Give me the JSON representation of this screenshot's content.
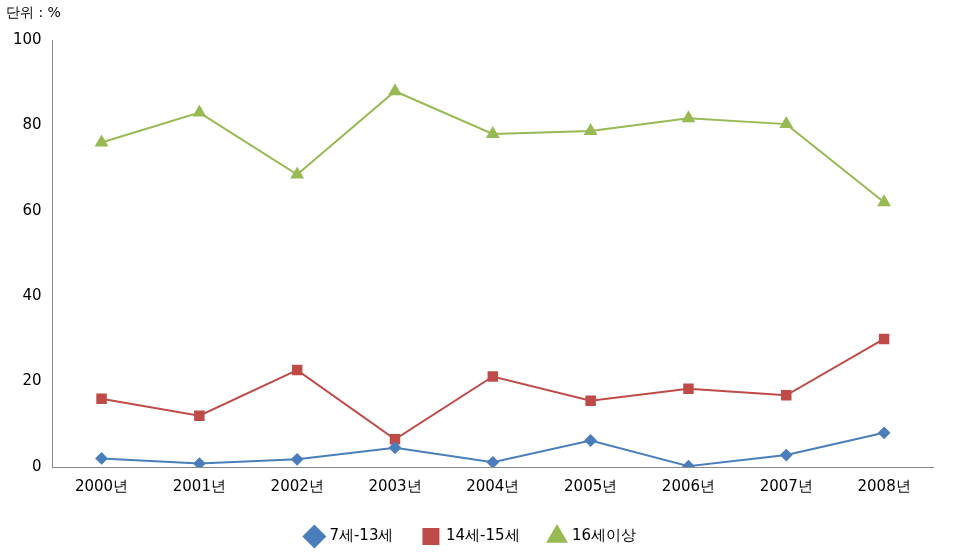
{
  "chart_data": {
    "type": "line",
    "ylabel": "단위 : %",
    "categories": [
      "2000년",
      "2001년",
      "2002년",
      "2003년",
      "2004년",
      "2005년",
      "2006년",
      "2007년",
      "2008년"
    ],
    "series": [
      {
        "name": "7세-13세",
        "color": "#4a7ebb",
        "marker": "diamond",
        "values": [
          2.0,
          0.8,
          1.8,
          4.5,
          1.1,
          6.2,
          0.2,
          2.8,
          8.0
        ]
      },
      {
        "name": "14세-15세",
        "color": "#be4b48",
        "marker": "square",
        "values": [
          16.0,
          12.0,
          22.7,
          6.5,
          21.2,
          15.5,
          18.3,
          16.8,
          30.0
        ]
      },
      {
        "name": "16세이상",
        "color": "#98b954",
        "marker": "triangle",
        "values": [
          76.0,
          83.0,
          68.5,
          88.0,
          78.0,
          78.7,
          81.7,
          80.3,
          62.0
        ]
      }
    ],
    "ylim": [
      0,
      100
    ],
    "yticks": [
      0,
      20,
      40,
      60,
      80,
      100
    ],
    "grid": false,
    "legend": "bottom"
  }
}
